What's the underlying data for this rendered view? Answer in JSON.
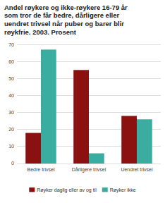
{
  "chart_data": {
    "type": "bar",
    "title": "Andel røykere og ikke-røykere 16-79 år\nsom tror de får bedre, dårligere eller\nuendret trivsel når puber og barer blir\nrøykfrie. 2003. Prosent",
    "categories": [
      "Bedre trivsel",
      "Dårligere trivsel",
      "Uendret trivsel"
    ],
    "series": [
      {
        "name": "Røyker daglig eller av og til",
        "color": "#8B1010",
        "values": [
          18,
          55,
          28
        ]
      },
      {
        "name": "Røyker ikke",
        "color": "#3AADA0",
        "values": [
          67,
          6,
          26
        ]
      }
    ],
    "ylim": [
      0,
      70
    ],
    "yticks": [
      0,
      10,
      20,
      30,
      40,
      50,
      60,
      70
    ],
    "grid": true,
    "legend": "bottom"
  }
}
